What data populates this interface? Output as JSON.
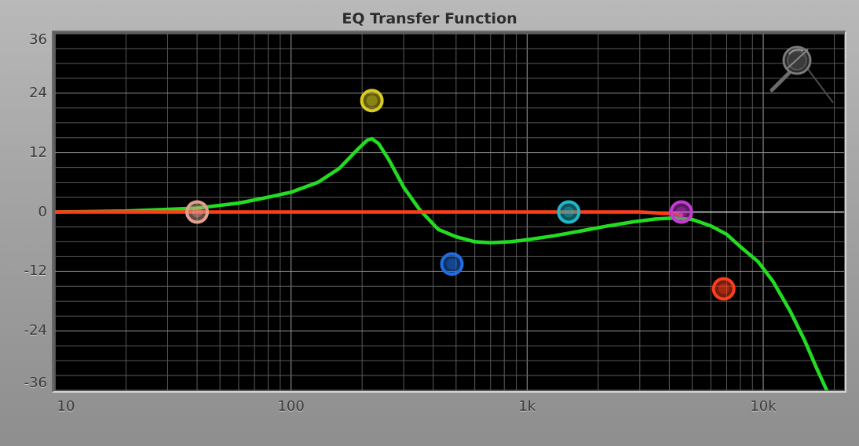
{
  "window": {
    "title": "EQ Transfer Function"
  },
  "chart_data": {
    "type": "line",
    "title": "EQ Transfer Function",
    "x_scale": "log",
    "xlim": [
      10,
      22000
    ],
    "ylim": [
      -36,
      36
    ],
    "x_ticks": [
      {
        "value": 10,
        "label": "10"
      },
      {
        "value": 100,
        "label": "100"
      },
      {
        "value": 1000,
        "label": "1k"
      },
      {
        "value": 10000,
        "label": "10k"
      }
    ],
    "y_ticks": [
      {
        "value": 36,
        "label": "36"
      },
      {
        "value": 24,
        "label": "24"
      },
      {
        "value": 12,
        "label": "12"
      },
      {
        "value": 0,
        "label": "0"
      },
      {
        "value": -12,
        "label": "-12"
      },
      {
        "value": -24,
        "label": "-24"
      },
      {
        "value": -36,
        "label": "-36"
      }
    ],
    "grid": true,
    "series": [
      {
        "color": "#ff3d1a",
        "x": [
          10,
          1000,
          3000,
          4000,
          4500
        ],
        "y": [
          0,
          0,
          0,
          -0.3,
          -0.6
        ]
      },
      {
        "color": "#22dd22",
        "x": [
          10,
          20,
          40,
          60,
          80,
          100,
          130,
          160,
          190,
          210,
          220,
          235,
          260,
          300,
          350,
          420,
          500,
          600,
          700,
          850,
          1000,
          1300,
          1700,
          2200,
          2800,
          3500,
          4200,
          5000,
          6000,
          7000,
          8000,
          9500,
          11000,
          13000,
          15000,
          17000,
          19000
        ],
        "y": [
          0,
          0.2,
          0.8,
          1.8,
          3,
          4,
          6,
          8.8,
          12.5,
          14.5,
          14.8,
          13.8,
          10.5,
          5,
          0.5,
          -3.5,
          -5,
          -6,
          -6.2,
          -6,
          -5.6,
          -4.8,
          -3.8,
          -2.8,
          -2,
          -1.4,
          -1.2,
          -1.5,
          -2.8,
          -4.5,
          -7,
          -10,
          -14,
          -20,
          -26,
          -32,
          -37
        ]
      }
    ],
    "band_nodes": [
      {
        "band": "pink",
        "freq": 40,
        "gain": 0,
        "color": "#e0a090"
      },
      {
        "band": "yellow",
        "freq": 220,
        "gain": 22.5,
        "color": "#d8cc22"
      },
      {
        "band": "blue",
        "freq": 480,
        "gain": -10.5,
        "color": "#1f6de0"
      },
      {
        "band": "cyan",
        "freq": 1500,
        "gain": 0,
        "color": "#1fb8c8"
      },
      {
        "band": "magenta",
        "freq": 4500,
        "gain": 0,
        "color": "#c43ad0"
      },
      {
        "band": "red",
        "freq": 6800,
        "gain": -15.5,
        "color": "#ff3d1a"
      }
    ]
  },
  "icons": {
    "reset_icon": "magnifier-icon"
  }
}
